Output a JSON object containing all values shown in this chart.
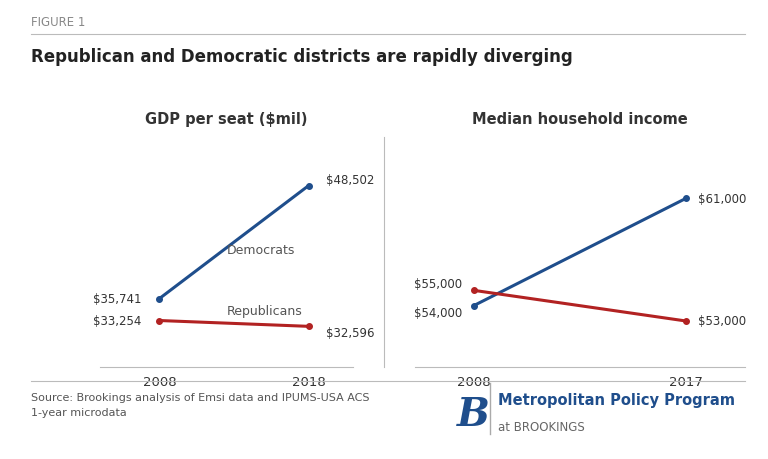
{
  "figure_label": "FIGURE 1",
  "title": "Republican and Democratic districts are rapidly diverging",
  "left_panel_title": "GDP per seat ($mil)",
  "right_panel_title": "Median household income",
  "gdp_years": [
    2008,
    2018
  ],
  "gdp_dem": [
    35741,
    48502
  ],
  "gdp_rep": [
    33254,
    32596
  ],
  "income_years": [
    2008,
    2017
  ],
  "income_dem": [
    54000,
    61000
  ],
  "income_rep": [
    55000,
    53000
  ],
  "dem_color": "#1f4e8c",
  "rep_color": "#b22222",
  "line_width": 2.2,
  "dem_label": "Democrats",
  "rep_label": "Republicans",
  "gdp_dem_labels": [
    "$35,741",
    "$48,502"
  ],
  "gdp_rep_labels": [
    "$33,254",
    "$32,596"
  ],
  "income_dem_labels": [
    "$54,000",
    "$61,000"
  ],
  "income_rep_labels": [
    "$55,000",
    "$53,000"
  ],
  "source_text": "Source: Brookings analysis of Emsi data and IPUMS-USA ACS\n1-year microdata",
  "background_color": "#ffffff",
  "text_color": "#333333",
  "label_color": "#555555",
  "separator_color": "#bbbbbb"
}
